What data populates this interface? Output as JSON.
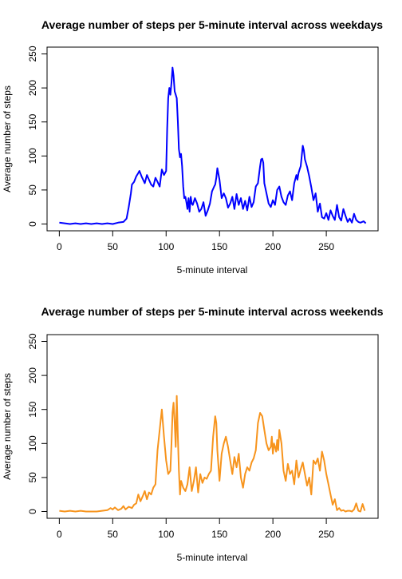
{
  "chart_data": [
    {
      "type": "line",
      "title": "Average number of steps per 5-minute interval across weekdays",
      "xlabel": "5-minute interval",
      "ylabel": "Average number of steps",
      "xlim": [
        0,
        287
      ],
      "ylim": [
        0,
        250
      ],
      "x_ticks": [
        0,
        50,
        100,
        150,
        200,
        250
      ],
      "y_ticks": [
        0,
        50,
        100,
        150,
        200,
        250
      ],
      "color": "#0000ff",
      "grid": false,
      "legend": "none",
      "series": [
        {
          "x": [
            0,
            5,
            10,
            15,
            20,
            25,
            30,
            35,
            40,
            45,
            50,
            55,
            60,
            63,
            65,
            67,
            68,
            70,
            72,
            74,
            75,
            77,
            80,
            82,
            84,
            86,
            88,
            90,
            92,
            94,
            96,
            98,
            100,
            101,
            102,
            103,
            104,
            105,
            106,
            107,
            108,
            109,
            110,
            111,
            112,
            113,
            114,
            115,
            116,
            117,
            118,
            119,
            120,
            121,
            122,
            123,
            124,
            125,
            127,
            129,
            131,
            133,
            135,
            137,
            139,
            141,
            143,
            145,
            146,
            147,
            148,
            150,
            152,
            154,
            156,
            158,
            160,
            162,
            164,
            166,
            168,
            170,
            172,
            174,
            176,
            178,
            180,
            182,
            184,
            186,
            187,
            188,
            189,
            190,
            191,
            192,
            194,
            196,
            198,
            200,
            202,
            204,
            206,
            208,
            210,
            212,
            214,
            216,
            218,
            220,
            222,
            223,
            224,
            225,
            226,
            227,
            228,
            229,
            230,
            232,
            234,
            236,
            238,
            240,
            242,
            244,
            246,
            248,
            250,
            252,
            254,
            256,
            258,
            260,
            262,
            264,
            266,
            268,
            270,
            272,
            274,
            276,
            278,
            280,
            282,
            285,
            287
          ],
          "y": [
            2,
            1,
            0,
            1,
            0,
            1,
            0,
            1,
            0,
            1,
            0,
            2,
            3,
            8,
            25,
            45,
            58,
            62,
            70,
            75,
            78,
            70,
            60,
            72,
            65,
            58,
            55,
            68,
            62,
            55,
            80,
            72,
            78,
            140,
            185,
            200,
            190,
            208,
            230,
            218,
            195,
            190,
            185,
            150,
            110,
            98,
            103,
            85,
            55,
            38,
            40,
            32,
            22,
            38,
            18,
            40,
            30,
            28,
            38,
            30,
            18,
            22,
            32,
            12,
            20,
            30,
            48,
            55,
            58,
            68,
            82,
            65,
            38,
            45,
            38,
            24,
            30,
            40,
            22,
            44,
            28,
            38,
            22,
            34,
            20,
            40,
            25,
            32,
            55,
            60,
            72,
            85,
            95,
            96,
            90,
            60,
            45,
            30,
            25,
            35,
            28,
            50,
            55,
            40,
            32,
            28,
            42,
            48,
            35,
            60,
            72,
            65,
            75,
            80,
            85,
            100,
            115,
            108,
            95,
            84,
            70,
            54,
            35,
            45,
            18,
            30,
            10,
            8,
            16,
            6,
            20,
            12,
            6,
            28,
            10,
            5,
            22,
            12,
            3,
            8,
            2,
            15,
            6,
            3,
            2,
            4,
            1
          ]
        }
      ]
    },
    {
      "type": "line",
      "title": "Average number of steps per 5-minute interval across weekends",
      "xlabel": "5-minute interval",
      "ylabel": "Average number of steps",
      "xlim": [
        0,
        287
      ],
      "ylim": [
        0,
        250
      ],
      "x_ticks": [
        0,
        50,
        100,
        150,
        200,
        250
      ],
      "y_ticks": [
        0,
        50,
        100,
        150,
        200,
        250
      ],
      "color": "#f7941d",
      "grid": false,
      "legend": "none",
      "series": [
        {
          "x": [
            0,
            5,
            10,
            15,
            20,
            25,
            30,
            35,
            40,
            45,
            48,
            50,
            52,
            55,
            58,
            60,
            62,
            65,
            68,
            70,
            72,
            74,
            76,
            78,
            80,
            82,
            84,
            86,
            88,
            90,
            92,
            94,
            96,
            98,
            100,
            102,
            104,
            105,
            106,
            107,
            108,
            109,
            110,
            111,
            112,
            113,
            114,
            116,
            118,
            120,
            122,
            124,
            126,
            128,
            130,
            132,
            134,
            136,
            138,
            140,
            142,
            144,
            146,
            147,
            148,
            150,
            152,
            154,
            156,
            158,
            160,
            162,
            164,
            166,
            168,
            170,
            172,
            174,
            176,
            178,
            180,
            182,
            184,
            186,
            188,
            190,
            192,
            194,
            196,
            198,
            199,
            200,
            201,
            202,
            203,
            204,
            205,
            206,
            208,
            210,
            212,
            214,
            216,
            218,
            220,
            222,
            224,
            226,
            228,
            230,
            232,
            234,
            236,
            238,
            240,
            242,
            244,
            246,
            248,
            250,
            252,
            254,
            256,
            258,
            260,
            262,
            264,
            266,
            268,
            270,
            272,
            274,
            276,
            278,
            280,
            282,
            284,
            286
          ],
          "y": [
            1,
            0,
            1,
            0,
            1,
            0,
            0,
            0,
            1,
            2,
            5,
            3,
            6,
            2,
            4,
            8,
            3,
            7,
            5,
            10,
            12,
            25,
            15,
            22,
            30,
            18,
            28,
            25,
            35,
            40,
            90,
            120,
            150,
            110,
            75,
            55,
            60,
            100,
            145,
            160,
            130,
            95,
            170,
            110,
            60,
            25,
            45,
            35,
            30,
            40,
            65,
            30,
            45,
            65,
            28,
            55,
            42,
            50,
            48,
            55,
            60,
            110,
            140,
            130,
            90,
            45,
            85,
            100,
            110,
            95,
            75,
            55,
            80,
            65,
            85,
            50,
            35,
            55,
            65,
            60,
            72,
            78,
            90,
            130,
            145,
            140,
            120,
            100,
            90,
            95,
            110,
            85,
            100,
            95,
            88,
            105,
            90,
            120,
            100,
            60,
            45,
            70,
            55,
            60,
            40,
            75,
            50,
            62,
            72,
            55,
            38,
            50,
            25,
            75,
            70,
            78,
            60,
            88,
            75,
            55,
            40,
            25,
            10,
            18,
            2,
            5,
            1,
            2,
            0,
            1,
            1,
            0,
            3,
            12,
            1,
            0,
            11,
            1
          ]
        }
      ]
    }
  ]
}
